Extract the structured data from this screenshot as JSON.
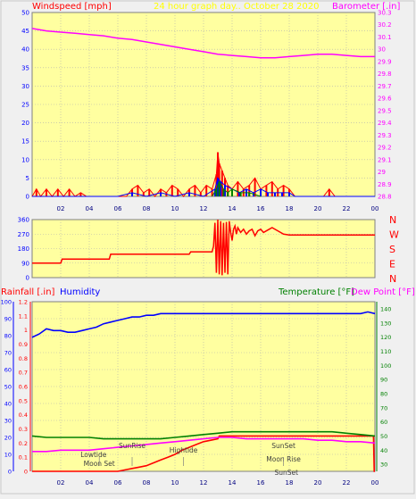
{
  "header": {
    "windspeed_title": "Windspeed [mph]",
    "graph_title": "24 hour graph day.. October 28 2020",
    "barometer_title": "Barometer [.in]"
  },
  "colors": {
    "plot_bg": "#ffffa0",
    "page_bg": "#f0f0f0",
    "windspeed_title": "#ff0000",
    "barometer_title": "#ff00ff",
    "graph_title": "#ffff00",
    "temperature_title": "#008000",
    "humidity_title": "#0000ff",
    "dewpoint_title": "#ff00ff",
    "rainfall_title": "#ff0000",
    "blue_axis": "#0000ff",
    "red_axis": "#ff0000",
    "green_axis": "#008000"
  },
  "chart_data": [
    {
      "type": "line",
      "panel": "wind",
      "x_tick_labels": [
        "02",
        "04",
        "06",
        "08",
        "10",
        "12",
        "14",
        "16",
        "18",
        "20",
        "22",
        "00"
      ],
      "y_left_ticks": [
        "0",
        "5",
        "10",
        "15",
        "20",
        "25",
        "30",
        "35",
        "40",
        "45",
        "50"
      ],
      "y_right_ticks": [
        "28.8",
        "28.9",
        "29",
        "29.1",
        "29.2",
        "29.3",
        "29.4",
        "29.5",
        "29.6",
        "29.7",
        "29.8",
        "29.9",
        "30",
        "30.1",
        "30.2",
        "30.3"
      ],
      "ylim_left": [
        0,
        50
      ],
      "ylim_right": [
        28.8,
        30.3
      ],
      "grid": true,
      "series": [
        {
          "role": "barometer",
          "color": "#ff00ff",
          "x": [
            0,
            1,
            2,
            3,
            4,
            5,
            6,
            7,
            8,
            9,
            10,
            11,
            12,
            13,
            14,
            15,
            16,
            17,
            18,
            19,
            20,
            21,
            22,
            23,
            24
          ],
          "y": [
            30.17,
            30.15,
            30.14,
            30.13,
            30.12,
            30.11,
            30.09,
            30.08,
            30.06,
            30.04,
            30.02,
            30.0,
            29.98,
            29.96,
            29.95,
            29.94,
            29.93,
            29.93,
            29.94,
            29.95,
            29.96,
            29.96,
            29.95,
            29.94,
            29.94
          ]
        },
        {
          "role": "wind_gust",
          "color": "#ff0000",
          "x": [
            0,
            0.3,
            0.6,
            1.0,
            1.4,
            1.8,
            2.2,
            2.6,
            3.0,
            3.4,
            3.8,
            4.2,
            4.6,
            5.0,
            5.4,
            5.8,
            6.2,
            6.6,
            7.0,
            7.4,
            7.8,
            8.2,
            8.6,
            9.0,
            9.4,
            9.8,
            10.2,
            10.6,
            11.0,
            11.4,
            11.8,
            12.2,
            12.6,
            12.9,
            13.0,
            13.1,
            13.3,
            13.5,
            13.7,
            14.0,
            14.4,
            14.8,
            15.2,
            15.6,
            16.0,
            16.4,
            16.8,
            17.2,
            17.6,
            18.0,
            18.4,
            18.8,
            19.2,
            19.6,
            20.0,
            20.4,
            20.8,
            21.2,
            21.6,
            22.0,
            22.4,
            22.8,
            23.2,
            23.6,
            24
          ],
          "y": [
            0,
            2,
            0,
            2,
            0,
            2,
            0,
            2,
            0,
            1,
            0,
            0,
            0,
            0,
            0,
            0,
            0,
            0,
            2,
            3,
            1,
            2,
            0,
            2,
            1,
            3,
            2,
            0,
            2,
            3,
            1,
            3,
            2,
            6,
            12,
            9,
            7,
            5,
            3,
            2,
            4,
            2,
            3,
            5,
            2,
            3,
            4,
            2,
            3,
            2,
            0,
            0,
            0,
            0,
            0,
            0,
            2,
            0,
            0,
            0,
            0,
            0,
            0,
            0,
            0
          ]
        },
        {
          "role": "wind_average",
          "color": "#0000ff",
          "x": [
            0,
            6,
            7,
            8,
            9,
            10,
            11,
            12,
            12.8,
            13.0,
            13.2,
            13.5,
            14.0,
            14.5,
            15.0,
            15.5,
            16.0,
            16.5,
            17.0,
            17.5,
            18.0,
            18.4,
            19,
            24
          ],
          "y": [
            0,
            0,
            1,
            0,
            1,
            0,
            1,
            0,
            2,
            5,
            4,
            3,
            2,
            1,
            2,
            1,
            2,
            1,
            1,
            1,
            1,
            0,
            0,
            0
          ]
        },
        {
          "role": "wind_direction_marks",
          "color": "#008000",
          "x": [
            12.6,
            12.9,
            13.1,
            13.4,
            13.7,
            14.0,
            14.6,
            15.2,
            16.0
          ],
          "y": [
            0,
            2,
            4,
            2,
            1,
            2,
            1,
            1,
            0
          ]
        }
      ]
    },
    {
      "type": "line",
      "panel": "direction",
      "y_left_ticks": [
        "0",
        "90",
        "180",
        "270",
        "360"
      ],
      "y_right_labels": [
        "N",
        "W",
        "S",
        "E",
        "N"
      ],
      "ylim_left": [
        0,
        360
      ],
      "grid": true,
      "series": [
        {
          "role": "wind_direction",
          "color": "#ff0000",
          "x": [
            0,
            2,
            2.1,
            5.4,
            5.5,
            11,
            11.1,
            12.6,
            12.7,
            12.8,
            12.9,
            13.0,
            13.1,
            13.2,
            13.3,
            13.4,
            13.5,
            13.6,
            13.7,
            13.8,
            13.9,
            14.0,
            14.1,
            14.2,
            14.3,
            14.4,
            14.6,
            14.8,
            15.0,
            15.2,
            15.4,
            15.6,
            15.8,
            16.0,
            16.2,
            16.5,
            16.8,
            17.2,
            17.6,
            18,
            24
          ],
          "y": [
            90,
            90,
            115,
            115,
            145,
            145,
            160,
            160,
            195,
            340,
            30,
            360,
            20,
            350,
            15,
            340,
            30,
            345,
            20,
            350,
            280,
            230,
            300,
            320,
            270,
            310,
            280,
            300,
            270,
            290,
            300,
            260,
            290,
            300,
            280,
            295,
            310,
            290,
            270,
            265,
            265
          ]
        }
      ]
    },
    {
      "type": "line",
      "panel": "rain_temp",
      "titles": {
        "rainfall": "Rainfall [.in]",
        "humidity": "Humidity",
        "temperature": "Temperature [°F]",
        "dewpoint": "Dew Point [°F]"
      },
      "y_blue_ticks": [
        "0",
        "10",
        "20",
        "30",
        "40",
        "50",
        "60",
        "70",
        "80",
        "90",
        "100"
      ],
      "y_red_ticks": [
        "0",
        "0.1",
        "0.2",
        "0.3",
        "0.4",
        "0.5",
        "0.6",
        "0.7",
        "0.8",
        "0.9",
        "1",
        "1.1",
        "1.2"
      ],
      "y_green_ticks": [
        "30",
        "40",
        "50",
        "60",
        "70",
        "80",
        "90",
        "100",
        "110",
        "120",
        "130",
        "140"
      ],
      "ylim_blue": [
        0,
        100
      ],
      "ylim_red": [
        0,
        1.2
      ],
      "ylim_green": [
        25,
        145
      ],
      "grid": true,
      "series": [
        {
          "role": "humidity",
          "color": "#0000ff",
          "x": [
            0,
            0.5,
            1,
            1.5,
            2,
            2.5,
            3,
            3.5,
            4,
            4.5,
            5,
            5.5,
            6,
            6.5,
            7,
            7.5,
            8,
            8.5,
            9,
            10,
            11,
            12,
            13,
            14,
            15,
            16,
            17,
            18,
            19,
            20,
            21,
            22,
            23,
            23.5,
            24
          ],
          "y": [
            79,
            81,
            84,
            83,
            83,
            82,
            82,
            83,
            84,
            85,
            87,
            88,
            89,
            90,
            91,
            91,
            92,
            92,
            93,
            93,
            93,
            93,
            93,
            93,
            93,
            93,
            93,
            93,
            93,
            93,
            93,
            93,
            93,
            94,
            93
          ]
        },
        {
          "role": "rainfall",
          "color": "#ff0000",
          "x": [
            0,
            6,
            6.5,
            7,
            7.5,
            8,
            8.5,
            9,
            9.5,
            10,
            10.5,
            11,
            11.5,
            12,
            12.5,
            13,
            13.1,
            14,
            16,
            18,
            20,
            22,
            23.9,
            23.95,
            24
          ],
          "y": [
            0,
            0,
            0.01,
            0.02,
            0.03,
            0.04,
            0.06,
            0.08,
            0.1,
            0.12,
            0.15,
            0.17,
            0.19,
            0.21,
            0.22,
            0.23,
            0.25,
            0.25,
            0.25,
            0.25,
            0.25,
            0.25,
            0.25,
            0,
            0
          ]
        },
        {
          "role": "temperature",
          "color": "#008000",
          "x": [
            0,
            1,
            2,
            3,
            4,
            5,
            6,
            7,
            8,
            9,
            10,
            11,
            12,
            13,
            14,
            15,
            16,
            17,
            18,
            19,
            20,
            21,
            22,
            23,
            24
          ],
          "y": [
            50,
            49,
            49,
            49,
            49,
            48,
            48,
            48,
            48,
            48,
            49,
            50,
            51,
            52,
            53,
            53,
            53,
            53,
            53,
            53,
            53,
            53,
            52,
            51,
            50
          ]
        },
        {
          "role": "dewpoint",
          "color": "#ff00ff",
          "x": [
            0,
            1,
            2,
            3,
            4,
            5,
            6,
            7,
            8,
            9,
            10,
            11,
            12,
            13,
            14,
            15,
            16,
            17,
            18,
            19,
            20,
            21,
            22,
            23,
            24
          ],
          "y": [
            39,
            39,
            40,
            40,
            40,
            41,
            42,
            43,
            44,
            45,
            46,
            47,
            48,
            49,
            49,
            48,
            48,
            48,
            48,
            48,
            47,
            47,
            46,
            46,
            45
          ]
        }
      ],
      "x_tick_labels": [
        "02",
        "04",
        "06",
        "08",
        "10",
        "12",
        "14",
        "16",
        "18",
        "20",
        "22",
        "00"
      ],
      "annotations": [
        {
          "text": "Lowtide",
          "x": 4.3,
          "row": 0
        },
        {
          "text": "Moon Set",
          "x": 4.7,
          "row": 1
        },
        {
          "text": "SunRise",
          "x": 7.0,
          "row": -1
        },
        {
          "text": "Hightide",
          "x": 10.6,
          "row": -0.5
        },
        {
          "text": "SunSet",
          "x": 17.6,
          "row": -1
        },
        {
          "text": "Moon Rise",
          "x": 17.6,
          "row": 0.5
        },
        {
          "text": "SunSet",
          "x": 17.8,
          "row": 2
        }
      ]
    }
  ]
}
